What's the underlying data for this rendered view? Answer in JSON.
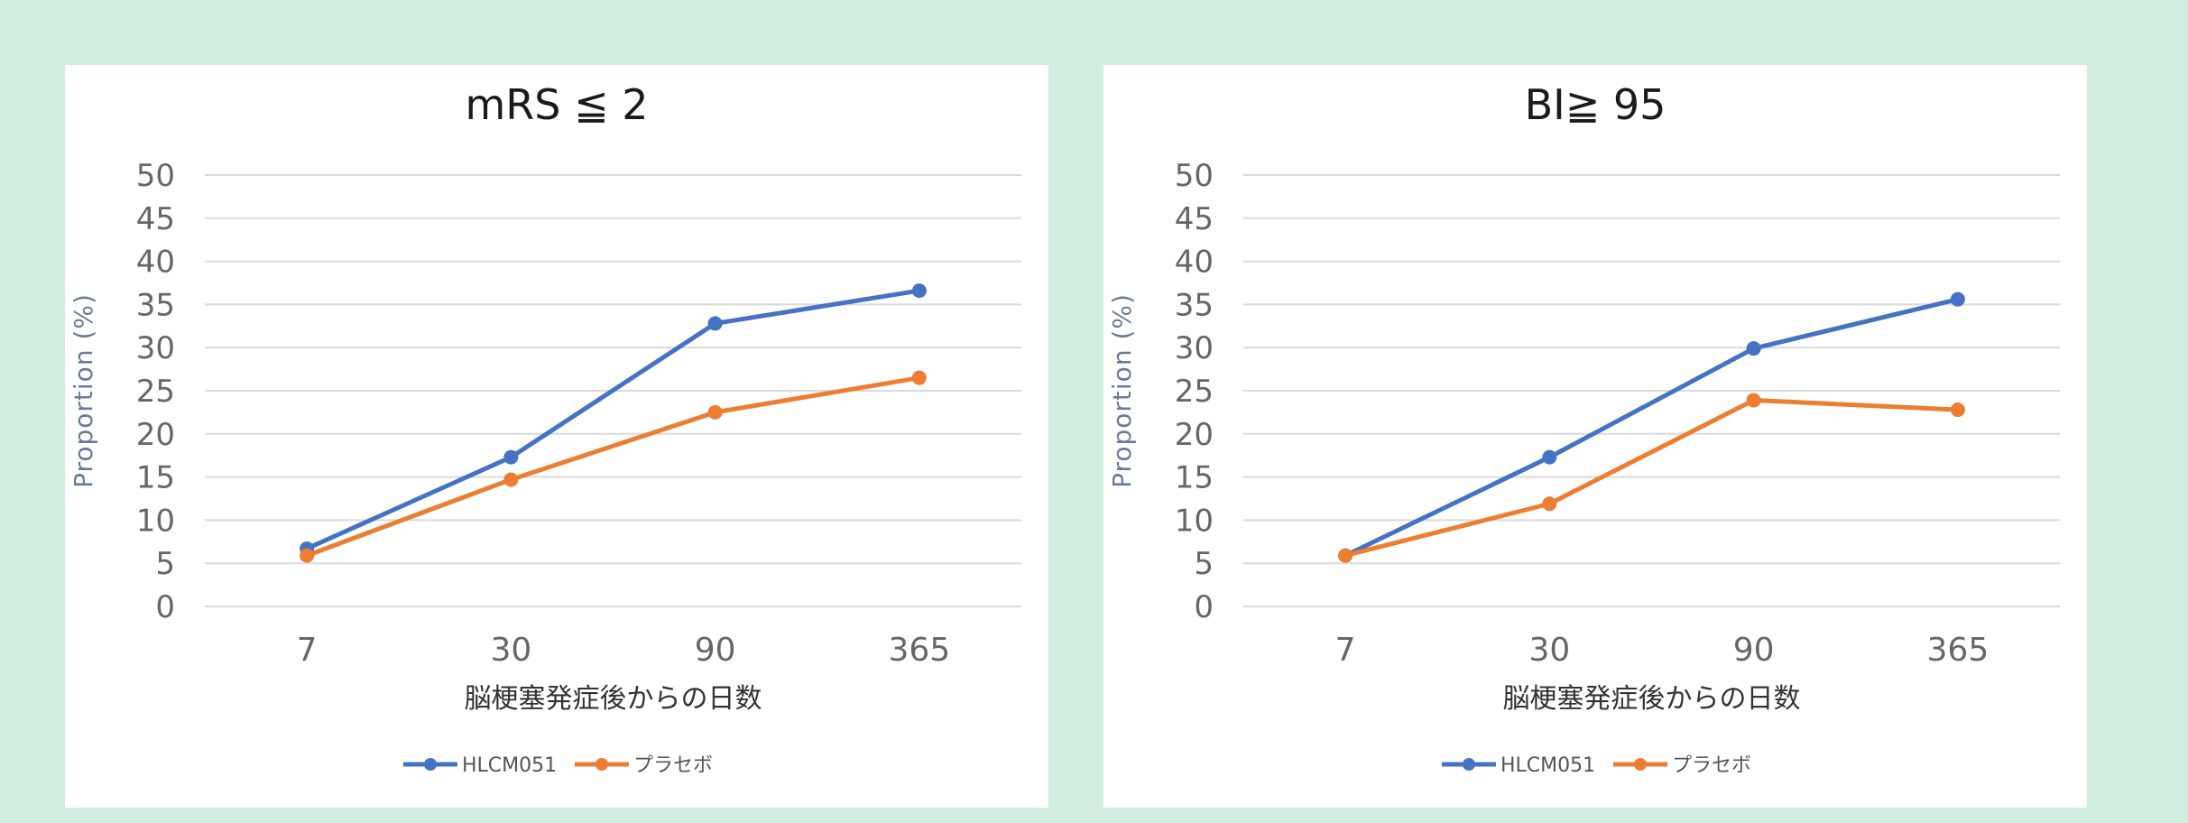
{
  "chart_data": [
    {
      "type": "line",
      "title": "mRS ≦ 2",
      "xlabel": "脳梗塞発症後からの日数",
      "ylabel": "Proportion (%)",
      "categories": [
        "7",
        "30",
        "90",
        "365"
      ],
      "ylim": [
        0,
        50
      ],
      "yticks": [
        0,
        5,
        10,
        15,
        20,
        25,
        30,
        35,
        40,
        45,
        50
      ],
      "grid": true,
      "legend_position": "bottom",
      "series": [
        {
          "name": "HLCM051",
          "color": "#4472c4",
          "values": [
            6.7,
            17.3,
            32.8,
            36.6
          ]
        },
        {
          "name": "プラセボ",
          "color": "#ed7d31",
          "values": [
            5.9,
            14.7,
            22.5,
            26.5
          ]
        }
      ]
    },
    {
      "type": "line",
      "title": "BI≧ 95",
      "xlabel": "脳梗塞発症後からの日数",
      "ylabel": "Proportion (%)",
      "categories": [
        "7",
        "30",
        "90",
        "365"
      ],
      "ylim": [
        0,
        50
      ],
      "yticks": [
        0,
        5,
        10,
        15,
        20,
        25,
        30,
        35,
        40,
        45,
        50
      ],
      "grid": true,
      "legend_position": "bottom",
      "series": [
        {
          "name": "HLCM051",
          "color": "#4472c4",
          "values": [
            5.9,
            17.3,
            29.9,
            35.6
          ]
        },
        {
          "name": "プラセボ",
          "color": "#ed7d31",
          "values": [
            5.9,
            11.9,
            23.9,
            22.8
          ]
        }
      ]
    }
  ]
}
